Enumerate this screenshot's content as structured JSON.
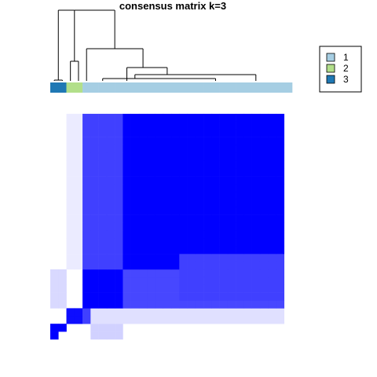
{
  "chart_data": {
    "type": "heatmap",
    "title": "consensus matrix k=3",
    "value_range": [
      0,
      1
    ],
    "low_color": "#ffffff",
    "high_color": "#0000ff",
    "n_samples": 30,
    "class_colors": {
      "1": "#a6cee3",
      "2": "#b2df8a",
      "3": "#1f78b4"
    },
    "sample_classes": [
      3,
      3,
      2,
      2,
      1,
      1,
      1,
      1,
      1,
      1,
      1,
      1,
      1,
      1,
      1,
      1,
      1,
      1,
      1,
      1,
      1,
      1,
      1,
      1,
      1,
      1,
      1,
      1,
      1,
      1
    ],
    "legend": {
      "placement": "top-right",
      "entries": [
        {
          "label": "1",
          "color": "#a6cee3"
        },
        {
          "label": "2",
          "color": "#b2df8a"
        },
        {
          "label": "3",
          "color": "#1f78b4"
        }
      ]
    },
    "dendrogram": {
      "shown": true,
      "placement": "top"
    },
    "blocks": [
      {
        "rows": [
          1,
          1
        ],
        "cols": [
          0,
          1
        ],
        "value": 1.0
      },
      {
        "rows": [
          0,
          0
        ],
        "cols": [
          0,
          0
        ],
        "value": 1.0
      },
      {
        "rows": [
          2,
          3
        ],
        "cols": [
          2,
          3
        ],
        "value": 0.95
      },
      {
        "rows": [
          2,
          3
        ],
        "cols": [
          4,
          4
        ],
        "value": 0.75
      },
      {
        "rows": [
          4,
          28
        ],
        "cols": [
          4,
          28
        ],
        "value": 0.97
      },
      {
        "rows": [
          4,
          8
        ],
        "cols": [
          4,
          8
        ],
        "value": 1.0
      },
      {
        "rows": [
          9,
          28
        ],
        "cols": [
          4,
          8
        ],
        "value": 0.75
      },
      {
        "rows": [
          9,
          28
        ],
        "cols": [
          9,
          28
        ],
        "value": 1.0
      },
      {
        "rows": [
          4,
          8
        ],
        "cols": [
          9,
          28
        ],
        "value": 0.72
      },
      {
        "rows": [
          5,
          10
        ],
        "cols": [
          16,
          28
        ],
        "value": 0.75
      },
      {
        "rows": [
          2,
          3
        ],
        "cols": [
          5,
          28
        ],
        "value": 0.12
      },
      {
        "rows": [
          0,
          1
        ],
        "cols": [
          5,
          8
        ],
        "value": 0.18
      },
      {
        "rows": [
          4,
          8
        ],
        "cols": [
          0,
          1
        ],
        "value": 0.15
      },
      {
        "rows": [
          9,
          28
        ],
        "cols": [
          2,
          3
        ],
        "value": 0.08
      }
    ]
  }
}
